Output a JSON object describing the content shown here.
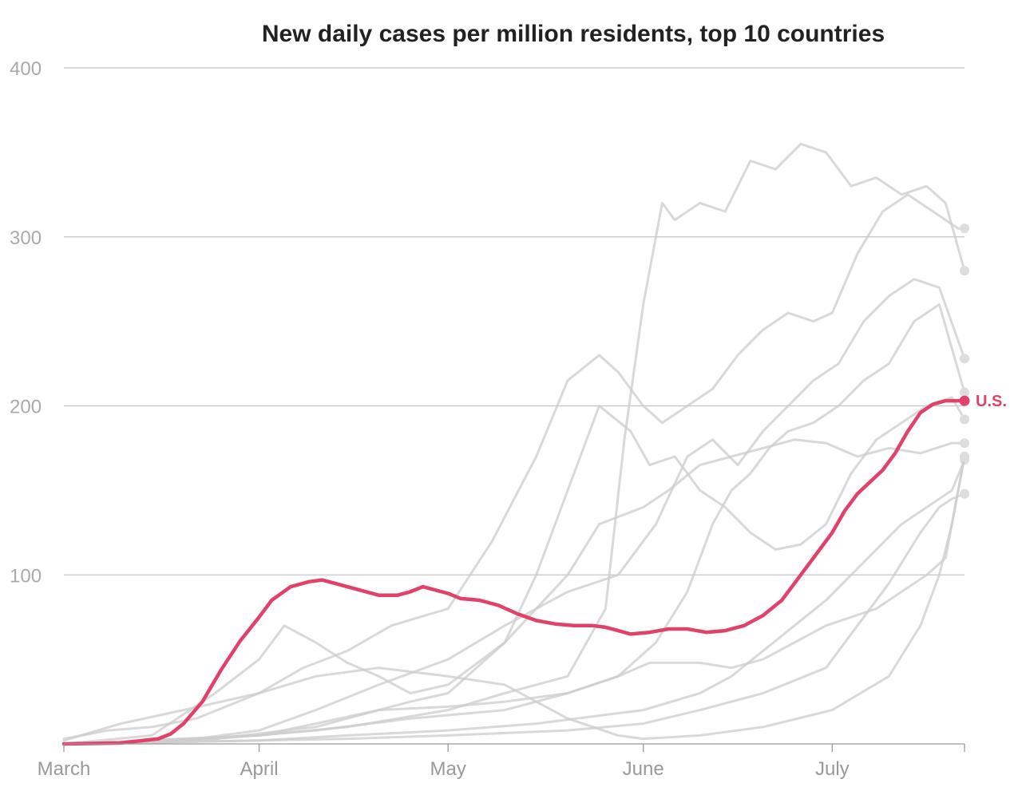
{
  "chart_data": {
    "type": "line",
    "title": "New daily cases per million residents, top 10 countries",
    "xlabel": "",
    "ylabel": "",
    "x_start": "March 1",
    "x_end": "July 22",
    "x_ticks": [
      {
        "label": "March",
        "date": "March 1"
      },
      {
        "label": "April",
        "date": "April 1"
      },
      {
        "label": "May",
        "date": "May 1"
      },
      {
        "label": "June",
        "date": "June 1"
      },
      {
        "label": "July",
        "date": "July 1"
      }
    ],
    "y_ticks": [
      400,
      300,
      200,
      100
    ],
    "ylim": [
      0,
      400
    ],
    "grid": true,
    "highlight_series": {
      "name": "U.S.",
      "color": "#e0426a",
      "points": [
        [
          "March 1",
          0
        ],
        [
          "March 10",
          0.5
        ],
        [
          "March 16",
          3
        ],
        [
          "March 18",
          6
        ],
        [
          "March 20",
          12
        ],
        [
          "March 23",
          25
        ],
        [
          "March 26",
          44
        ],
        [
          "March 29",
          61
        ],
        [
          "April 1",
          75
        ],
        [
          "April 3",
          85
        ],
        [
          "April 6",
          93
        ],
        [
          "April 9",
          96
        ],
        [
          "April 11",
          97
        ],
        [
          "April 13",
          95
        ],
        [
          "April 15",
          93
        ],
        [
          "April 18",
          90
        ],
        [
          "April 20",
          88
        ],
        [
          "April 23",
          88
        ],
        [
          "April 25",
          90
        ],
        [
          "April 27",
          93
        ],
        [
          "May 1",
          89
        ],
        [
          "May 3",
          86
        ],
        [
          "May 6",
          85
        ],
        [
          "May 9",
          82
        ],
        [
          "May 12",
          77
        ],
        [
          "May 15",
          73
        ],
        [
          "May 18",
          71
        ],
        [
          "May 21",
          70
        ],
        [
          "May 24",
          70
        ],
        [
          "May 26",
          69
        ],
        [
          "May 28",
          67
        ],
        [
          "May 30",
          65
        ],
        [
          "June 2",
          66
        ],
        [
          "June 5",
          68
        ],
        [
          "June 8",
          68
        ],
        [
          "June 11",
          66
        ],
        [
          "June 14",
          67
        ],
        [
          "June 17",
          70
        ],
        [
          "June 20",
          76
        ],
        [
          "June 23",
          85
        ],
        [
          "June 26",
          100
        ],
        [
          "June 28",
          110
        ],
        [
          "July 1",
          125
        ],
        [
          "July 3",
          138
        ],
        [
          "July 5",
          148
        ],
        [
          "July 7",
          155
        ],
        [
          "July 9",
          162
        ],
        [
          "July 11",
          172
        ],
        [
          "July 13",
          185
        ],
        [
          "July 15",
          196
        ],
        [
          "July 17",
          201
        ],
        [
          "July 19",
          203
        ],
        [
          "July 22",
          203
        ]
      ]
    },
    "series": [
      {
        "points": [
          [
            "March 1",
            3
          ],
          [
            "March 8",
            8
          ],
          [
            "March 15",
            10
          ],
          [
            "March 22",
            15
          ],
          [
            "April 1",
            30
          ],
          [
            "April 8",
            45
          ],
          [
            "April 15",
            55
          ],
          [
            "April 22",
            70
          ],
          [
            "May 1",
            80
          ],
          [
            "May 8",
            120
          ],
          [
            "May 15",
            170
          ],
          [
            "May 20",
            215
          ],
          [
            "May 25",
            230
          ],
          [
            "May 28",
            220
          ],
          [
            "June 1",
            200
          ],
          [
            "June 4",
            190
          ],
          [
            "June 8",
            200
          ],
          [
            "June 12",
            210
          ],
          [
            "June 16",
            230
          ],
          [
            "June 20",
            245
          ],
          [
            "June 24",
            255
          ],
          [
            "June 28",
            250
          ],
          [
            "July 1",
            255
          ],
          [
            "July 5",
            290
          ],
          [
            "July 9",
            315
          ],
          [
            "July 13",
            325
          ],
          [
            "July 17",
            315
          ],
          [
            "July 21",
            305
          ],
          [
            "July 22",
            305
          ]
        ]
      },
      {
        "points": [
          [
            "March 1",
            0
          ],
          [
            "March 15",
            2
          ],
          [
            "April 1",
            5
          ],
          [
            "April 15",
            10
          ],
          [
            "May 1",
            20
          ],
          [
            "May 10",
            30
          ],
          [
            "May 20",
            40
          ],
          [
            "May 26",
            80
          ],
          [
            "May 29",
            180
          ],
          [
            "June 1",
            260
          ],
          [
            "June 4",
            320
          ],
          [
            "June 6",
            310
          ],
          [
            "June 10",
            320
          ],
          [
            "June 14",
            315
          ],
          [
            "June 18",
            345
          ],
          [
            "June 22",
            340
          ],
          [
            "June 26",
            355
          ],
          [
            "June 30",
            350
          ],
          [
            "July 4",
            330
          ],
          [
            "July 8",
            335
          ],
          [
            "July 12",
            325
          ],
          [
            "July 16",
            330
          ],
          [
            "July 19",
            320
          ],
          [
            "July 22",
            280
          ]
        ]
      },
      {
        "points": [
          [
            "March 1",
            0
          ],
          [
            "March 20",
            2
          ],
          [
            "April 1",
            8
          ],
          [
            "April 10",
            20
          ],
          [
            "April 20",
            35
          ],
          [
            "May 1",
            50
          ],
          [
            "May 10",
            70
          ],
          [
            "May 20",
            90
          ],
          [
            "May 28",
            100
          ],
          [
            "June 3",
            130
          ],
          [
            "June 8",
            170
          ],
          [
            "June 12",
            180
          ],
          [
            "June 16",
            165
          ],
          [
            "June 20",
            185
          ],
          [
            "June 24",
            200
          ],
          [
            "June 28",
            215
          ],
          [
            "July 2",
            225
          ],
          [
            "July 6",
            250
          ],
          [
            "July 10",
            265
          ],
          [
            "July 14",
            275
          ],
          [
            "July 18",
            270
          ],
          [
            "July 22",
            228
          ]
        ]
      },
      {
        "points": [
          [
            "March 1",
            0
          ],
          [
            "March 25",
            3
          ],
          [
            "April 10",
            8
          ],
          [
            "April 25",
            15
          ],
          [
            "May 10",
            20
          ],
          [
            "May 20",
            30
          ],
          [
            "May 28",
            40
          ],
          [
            "June 3",
            60
          ],
          [
            "June 8",
            90
          ],
          [
            "June 12",
            130
          ],
          [
            "June 15",
            150
          ],
          [
            "June 18",
            160
          ],
          [
            "June 21",
            175
          ],
          [
            "June 24",
            185
          ],
          [
            "June 28",
            190
          ],
          [
            "July 2",
            200
          ],
          [
            "July 6",
            215
          ],
          [
            "July 10",
            225
          ],
          [
            "July 14",
            250
          ],
          [
            "July 18",
            260
          ],
          [
            "July 22",
            208
          ]
        ]
      },
      {
        "points": [
          [
            "March 1",
            0
          ],
          [
            "March 15",
            5
          ],
          [
            "March 25",
            30
          ],
          [
            "April 1",
            50
          ],
          [
            "April 5",
            70
          ],
          [
            "April 10",
            60
          ],
          [
            "April 15",
            48
          ],
          [
            "April 20",
            40
          ],
          [
            "April 25",
            30
          ],
          [
            "May 1",
            35
          ],
          [
            "May 10",
            60
          ],
          [
            "May 15",
            100
          ],
          [
            "May 20",
            150
          ],
          [
            "May 25",
            200
          ],
          [
            "May 30",
            185
          ],
          [
            "June 2",
            165
          ],
          [
            "June 6",
            170
          ],
          [
            "June 10",
            150
          ],
          [
            "June 14",
            140
          ],
          [
            "June 18",
            125
          ],
          [
            "June 22",
            115
          ],
          [
            "June 26",
            118
          ],
          [
            "June 30",
            130
          ],
          [
            "July 4",
            160
          ],
          [
            "July 8",
            180
          ],
          [
            "July 12",
            190
          ],
          [
            "July 16",
            200
          ],
          [
            "July 20",
            205
          ],
          [
            "July 22",
            192
          ]
        ]
      },
      {
        "points": [
          [
            "March 1",
            0
          ],
          [
            "March 25",
            3
          ],
          [
            "April 10",
            10
          ],
          [
            "April 20",
            20
          ],
          [
            "April 25",
            25
          ],
          [
            "May 1",
            30
          ],
          [
            "May 10",
            60
          ],
          [
            "May 15",
            80
          ],
          [
            "May 20",
            100
          ],
          [
            "May 25",
            130
          ],
          [
            "June 1",
            140
          ],
          [
            "June 5",
            150
          ],
          [
            "June 10",
            165
          ],
          [
            "June 15",
            170
          ],
          [
            "June 20",
            175
          ],
          [
            "June 25",
            180
          ],
          [
            "June 30",
            178
          ],
          [
            "July 5",
            170
          ],
          [
            "July 10",
            175
          ],
          [
            "July 15",
            172
          ],
          [
            "July 20",
            178
          ],
          [
            "July 22",
            178
          ]
        ]
      },
      {
        "points": [
          [
            "March 1",
            0
          ],
          [
            "April 1",
            2
          ],
          [
            "April 15",
            5
          ],
          [
            "May 1",
            8
          ],
          [
            "May 15",
            12
          ],
          [
            "June 1",
            20
          ],
          [
            "June 10",
            30
          ],
          [
            "June 15",
            40
          ],
          [
            "June 20",
            55
          ],
          [
            "June 25",
            70
          ],
          [
            "June 30",
            85
          ],
          [
            "July 4",
            100
          ],
          [
            "July 8",
            115
          ],
          [
            "July 12",
            130
          ],
          [
            "July 16",
            140
          ],
          [
            "July 20",
            150
          ],
          [
            "July 22",
            168
          ]
        ]
      },
      {
        "points": [
          [
            "March 1",
            0
          ],
          [
            "April 1",
            2
          ],
          [
            "April 15",
            3
          ],
          [
            "May 1",
            5
          ],
          [
            "May 20",
            8
          ],
          [
            "June 1",
            12
          ],
          [
            "June 10",
            20
          ],
          [
            "June 20",
            30
          ],
          [
            "June 30",
            45
          ],
          [
            "July 5",
            70
          ],
          [
            "July 10",
            95
          ],
          [
            "July 15",
            125
          ],
          [
            "July 18",
            140
          ],
          [
            "July 20",
            145
          ],
          [
            "July 22",
            148
          ]
        ]
      },
      {
        "points": [
          [
            "March 1",
            0
          ],
          [
            "April 1",
            5
          ],
          [
            "April 10",
            12
          ],
          [
            "April 20",
            20
          ],
          [
            "May 1",
            22
          ],
          [
            "May 10",
            25
          ],
          [
            "May 20",
            30
          ],
          [
            "May 28",
            40
          ],
          [
            "June 2",
            48
          ],
          [
            "June 10",
            48
          ],
          [
            "June 15",
            45
          ],
          [
            "June 20",
            50
          ],
          [
            "June 25",
            60
          ],
          [
            "June 30",
            70
          ],
          [
            "July 4",
            75
          ],
          [
            "July 8",
            80
          ],
          [
            "July 12",
            90
          ],
          [
            "July 16",
            100
          ],
          [
            "July 19",
            110
          ],
          [
            "July 22",
            170
          ]
        ]
      },
      {
        "points": [
          [
            "March 1",
            2
          ],
          [
            "March 10",
            12
          ],
          [
            "March 20",
            20
          ],
          [
            "April 1",
            30
          ],
          [
            "April 10",
            40
          ],
          [
            "April 20",
            45
          ],
          [
            "May 1",
            40
          ],
          [
            "May 10",
            35
          ],
          [
            "May 20",
            15
          ],
          [
            "May 28",
            5
          ],
          [
            "June 1",
            3
          ],
          [
            "June 10",
            5
          ],
          [
            "June 20",
            10
          ],
          [
            "July 1",
            20
          ],
          [
            "July 10",
            40
          ],
          [
            "July 15",
            70
          ],
          [
            "July 18",
            100
          ],
          [
            "July 20",
            130
          ],
          [
            "July 22",
            170
          ]
        ]
      }
    ],
    "background_color": "#cccccc",
    "legend": "end label"
  }
}
